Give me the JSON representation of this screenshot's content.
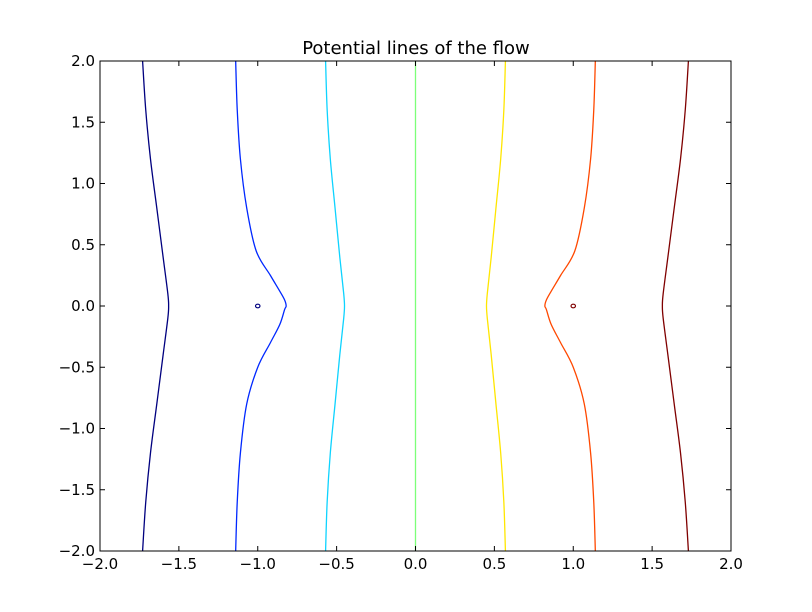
{
  "chart_data": {
    "type": "line",
    "title": "Potential lines of the flow",
    "xlabel": "",
    "ylabel": "",
    "xlim": [
      -2.0,
      2.0
    ],
    "ylim": [
      -2.0,
      2.0
    ],
    "x_ticks": [
      "−2.0",
      "−1.5",
      "−1.0",
      "−0.5",
      "0.0",
      "0.5",
      "1.0",
      "1.5",
      "2.0"
    ],
    "y_ticks": [
      "−2.0",
      "−1.5",
      "−1.0",
      "−0.5",
      "0.0",
      "0.5",
      "1.0",
      "1.5",
      "2.0"
    ],
    "grid": false,
    "series": [
      {
        "color": "#00007f",
        "points": [
          [
            -1.73,
            -2.0
          ],
          [
            -1.71,
            -1.6
          ],
          [
            -1.68,
            -1.2
          ],
          [
            -1.64,
            -0.8
          ],
          [
            -1.6,
            -0.4
          ],
          [
            -1.57,
            -0.1
          ],
          [
            -1.565,
            0.0
          ],
          [
            -1.57,
            0.1
          ],
          [
            -1.6,
            0.4
          ],
          [
            -1.64,
            0.8
          ],
          [
            -1.68,
            1.2
          ],
          [
            -1.71,
            1.6
          ],
          [
            -1.73,
            2.0
          ]
        ]
      },
      {
        "color": "#0028ff",
        "points": [
          [
            -1.14,
            -2.0
          ],
          [
            -1.13,
            -1.6
          ],
          [
            -1.11,
            -1.2
          ],
          [
            -1.07,
            -0.8
          ],
          [
            -1.0,
            -0.5
          ],
          [
            -0.92,
            -0.3
          ],
          [
            -0.86,
            -0.15
          ],
          [
            -0.83,
            -0.03
          ],
          [
            -0.82,
            0.0
          ],
          [
            -0.83,
            0.05
          ],
          [
            -0.86,
            0.12
          ],
          [
            -0.92,
            0.25
          ],
          [
            -1.01,
            0.45
          ],
          [
            -1.07,
            0.8
          ],
          [
            -1.11,
            1.2
          ],
          [
            -1.13,
            1.6
          ],
          [
            -1.14,
            2.0
          ]
        ]
      },
      {
        "color": "#0dd3ff",
        "points": [
          [
            -0.57,
            -2.0
          ],
          [
            -0.56,
            -1.6
          ],
          [
            -0.54,
            -1.2
          ],
          [
            -0.51,
            -0.8
          ],
          [
            -0.48,
            -0.4
          ],
          [
            -0.455,
            -0.1
          ],
          [
            -0.45,
            0.0
          ],
          [
            -0.455,
            0.1
          ],
          [
            -0.48,
            0.4
          ],
          [
            -0.51,
            0.8
          ],
          [
            -0.54,
            1.2
          ],
          [
            -0.56,
            1.6
          ],
          [
            -0.57,
            2.0
          ]
        ]
      },
      {
        "color": "#7cff79",
        "points": [
          [
            0.0,
            -2.0
          ],
          [
            0.0,
            2.0
          ]
        ]
      },
      {
        "color": "#ffe600",
        "points": [
          [
            0.57,
            -2.0
          ],
          [
            0.56,
            -1.6
          ],
          [
            0.54,
            -1.2
          ],
          [
            0.51,
            -0.8
          ],
          [
            0.48,
            -0.4
          ],
          [
            0.455,
            -0.1
          ],
          [
            0.45,
            0.0
          ],
          [
            0.455,
            0.1
          ],
          [
            0.48,
            0.4
          ],
          [
            0.51,
            0.8
          ],
          [
            0.54,
            1.2
          ],
          [
            0.56,
            1.6
          ],
          [
            0.57,
            2.0
          ]
        ]
      },
      {
        "color": "#ff4800",
        "points": [
          [
            1.14,
            -2.0
          ],
          [
            1.13,
            -1.6
          ],
          [
            1.11,
            -1.2
          ],
          [
            1.07,
            -0.8
          ],
          [
            1.0,
            -0.5
          ],
          [
            0.92,
            -0.3
          ],
          [
            0.86,
            -0.15
          ],
          [
            0.83,
            -0.03
          ],
          [
            0.82,
            0.0
          ],
          [
            0.83,
            0.05
          ],
          [
            0.86,
            0.12
          ],
          [
            0.92,
            0.25
          ],
          [
            1.01,
            0.45
          ],
          [
            1.07,
            0.8
          ],
          [
            1.11,
            1.2
          ],
          [
            1.13,
            1.6
          ],
          [
            1.14,
            2.0
          ]
        ]
      },
      {
        "color": "#7f0000",
        "points": [
          [
            1.73,
            -2.0
          ],
          [
            1.71,
            -1.6
          ],
          [
            1.68,
            -1.2
          ],
          [
            1.64,
            -0.8
          ],
          [
            1.6,
            -0.4
          ],
          [
            1.57,
            -0.1
          ],
          [
            1.565,
            0.0
          ],
          [
            1.57,
            0.1
          ],
          [
            1.6,
            0.4
          ],
          [
            1.64,
            0.8
          ],
          [
            1.68,
            1.2
          ],
          [
            1.71,
            1.6
          ],
          [
            1.73,
            2.0
          ]
        ]
      }
    ],
    "markers": [
      {
        "x": -1.0,
        "y": 0.0,
        "color": "#00007f"
      },
      {
        "x": 1.0,
        "y": 0.0,
        "color": "#7f0000"
      }
    ]
  }
}
